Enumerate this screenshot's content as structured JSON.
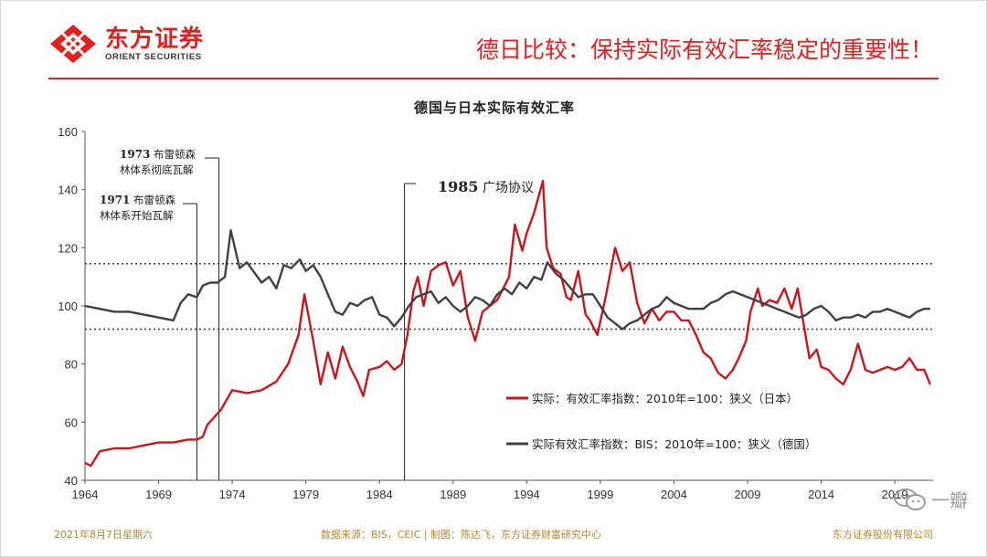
{
  "header": {
    "logo_cn": "东方证券",
    "logo_en": "ORIENT SECURITIES",
    "slide_title": "德日比较：保持实际有效汇率稳定的重要性！"
  },
  "footer": {
    "date": "2021年8月7日星期六",
    "source": "数据来源：BIS，CEIC  | 制图：陈达飞，东方证券财富研究中心",
    "company": "东方证券股份有限公司"
  },
  "watermark": {
    "text": "一瓣"
  },
  "chart_data": {
    "type": "line",
    "title": "德国与日本实际有效汇率",
    "xlabel": "",
    "ylabel": "",
    "xlim": [
      1964,
      2021.6
    ],
    "ylim": [
      40,
      160
    ],
    "x_ticks": [
      1964,
      1969,
      1974,
      1979,
      1984,
      1989,
      1994,
      1999,
      2004,
      2009,
      2014,
      2019
    ],
    "y_ticks": [
      40,
      60,
      80,
      100,
      120,
      140,
      160
    ],
    "grid": false,
    "reference_lines": [
      114.5,
      92
    ],
    "legend_position": "bottom-right",
    "annotations": [
      {
        "year": 1971.6,
        "text": "1971 布雷顿森\n林体系开始瓦解"
      },
      {
        "year": 1973.1,
        "text": "1973 布雷顿森\n林体系彻底瓦解"
      },
      {
        "year": 1985.7,
        "text": "1985 广场协议"
      }
    ],
    "series": [
      {
        "name": "实际：有效汇率指数：2010年=100：狭义（日本）",
        "color": "#c8161d",
        "x": [
          1964,
          1964.4,
          1965,
          1966,
          1967,
          1968,
          1969,
          1970,
          1971,
          1971.6,
          1972,
          1972.3,
          1973,
          1973.2,
          1974,
          1975,
          1976,
          1977,
          1977.8,
          1978.5,
          1978.9,
          1979.5,
          1980,
          1980.5,
          1981,
          1981.5,
          1982,
          1982.5,
          1982.9,
          1983.3,
          1984,
          1984.5,
          1985,
          1985.5,
          1985.9,
          1986.3,
          1986.6,
          1987,
          1987.5,
          1988,
          1988.5,
          1989,
          1989.5,
          1990,
          1990.5,
          1991,
          1991.5,
          1992,
          1992.8,
          1993.2,
          1993.7,
          1994,
          1994.5,
          1995.1,
          1995.35,
          1995.8,
          1996.3,
          1996.7,
          1997,
          1997.5,
          1998,
          1998.3,
          1998.8,
          1999.4,
          2000,
          2000.5,
          2001,
          2001.5,
          2002,
          2002.5,
          2003,
          2003.5,
          2004,
          2004.5,
          2005,
          2005.5,
          2006,
          2006.5,
          2007,
          2007.5,
          2008,
          2008.4,
          2008.9,
          2009.2,
          2009.7,
          2010,
          2010.5,
          2011,
          2011.5,
          2012,
          2012.4,
          2012.8,
          2013.2,
          2013.7,
          2014,
          2014.5,
          2015,
          2015.5,
          2016,
          2016.5,
          2017,
          2017.5,
          2018,
          2018.5,
          2019,
          2019.5,
          2020,
          2020.5,
          2021,
          2021.4
        ],
        "values": [
          46,
          45,
          50,
          51,
          51,
          52,
          53,
          53,
          54,
          54,
          55,
          59,
          63,
          64,
          71,
          70,
          71,
          74,
          80,
          90,
          104,
          88,
          73,
          84,
          75,
          86,
          79,
          74,
          69,
          78,
          79,
          81,
          78,
          80,
          90,
          105,
          110,
          100,
          112,
          114,
          115,
          107,
          112,
          96,
          88,
          98,
          100,
          102,
          110,
          128,
          119,
          125,
          132,
          143,
          120,
          113,
          111,
          103,
          102,
          112,
          97,
          95,
          90,
          104,
          120,
          112,
          115,
          101,
          94,
          99,
          95,
          98,
          98,
          95,
          95,
          90,
          84,
          82,
          77,
          75,
          78,
          82,
          88,
          98,
          106,
          100,
          102,
          101,
          106,
          99,
          106,
          94,
          82,
          85,
          79,
          78,
          75,
          73,
          78,
          87,
          78,
          77,
          78,
          79,
          78,
          79,
          82,
          78,
          78,
          73
        ]
      },
      {
        "name": "实际有效汇率指数：BIS：2010年=100：狭义（德国）",
        "color": "#404040",
        "x": [
          1964,
          1965,
          1966,
          1967,
          1968,
          1969,
          1970,
          1970.5,
          1971,
          1971.6,
          1972,
          1972.5,
          1973,
          1973.5,
          1973.9,
          1974.5,
          1975,
          1976,
          1976.5,
          1977,
          1977.5,
          1978,
          1978.6,
          1979,
          1979.5,
          1980,
          1980.5,
          1981,
          1981.5,
          1982,
          1982.5,
          1983,
          1983.5,
          1984,
          1984.5,
          1985,
          1985.5,
          1986,
          1986.5,
          1987,
          1987.5,
          1988,
          1988.5,
          1989,
          1989.5,
          1990,
          1990.5,
          1991,
          1991.5,
          1992,
          1992.5,
          1993,
          1993.5,
          1994,
          1994.5,
          1995,
          1995.4,
          1996,
          1996.5,
          1997,
          1997.5,
          1998,
          1998.5,
          1999,
          1999.5,
          2000,
          2000.5,
          2001,
          2001.5,
          2002,
          2002.5,
          2003,
          2003.5,
          2004,
          2004.5,
          2005,
          2005.5,
          2006,
          2006.5,
          2007,
          2007.5,
          2008,
          2008.5,
          2009,
          2009.5,
          2010,
          2010.5,
          2011,
          2011.5,
          2012,
          2012.5,
          2013,
          2013.5,
          2014,
          2014.5,
          2015,
          2015.5,
          2016,
          2016.5,
          2017,
          2017.5,
          2018,
          2018.5,
          2019,
          2019.5,
          2020,
          2020.5,
          2021,
          2021.4
        ],
        "values": [
          100,
          99,
          98,
          98,
          97,
          96,
          95,
          101,
          104,
          103,
          107,
          108,
          108,
          110,
          126,
          113,
          115,
          108,
          110,
          106,
          114,
          113,
          116,
          112,
          114,
          110,
          104,
          98,
          97,
          101,
          100,
          102,
          103,
          97,
          96,
          93,
          96,
          100,
          103,
          104,
          105,
          101,
          103,
          100,
          98,
          100,
          103,
          102,
          100,
          104,
          106,
          104,
          108,
          106,
          110,
          109,
          115,
          111,
          109,
          106,
          103,
          104,
          104,
          100,
          96,
          94,
          92,
          94,
          95,
          97,
          99,
          100,
          103,
          101,
          100,
          99,
          99,
          99,
          101,
          102,
          104,
          105,
          104,
          103,
          102,
          101,
          100,
          99,
          98,
          97,
          96,
          97,
          99,
          100,
          98,
          95,
          96,
          96,
          97,
          96,
          98,
          98,
          99,
          98,
          97,
          96,
          98,
          99,
          99
        ]
      }
    ]
  }
}
